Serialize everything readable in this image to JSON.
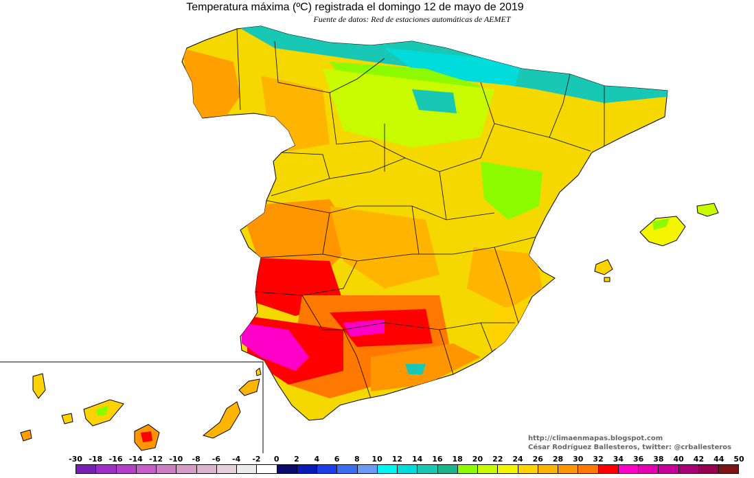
{
  "header": {
    "title": "Temperatura máxima (ºC) registrada el domingo 12 de mayo de 2019",
    "subtitle": "Fuente de datos: Red de estaciones automáticas de AEMET"
  },
  "credit": {
    "blog": "http://climaenmapas.blogspot.com",
    "author": "César Rodríguez Ballesteros, twitter: @crballesteros"
  },
  "legend": {
    "labels": [
      "-30",
      "-18",
      "-16",
      "-14",
      "-12",
      "-10",
      "-8",
      "-6",
      "-4",
      "-2",
      "0",
      "2",
      "4",
      "6",
      "8",
      "10",
      "12",
      "14",
      "16",
      "18",
      "20",
      "22",
      "24",
      "26",
      "28",
      "30",
      "32",
      "34",
      "36",
      "38",
      "40",
      "42",
      "44",
      "50"
    ],
    "colors": [
      "#7a1fb5",
      "#9d2ec8",
      "#b53fcb",
      "#c55ec9",
      "#cc7fc2",
      "#d79bc9",
      "#dbb3cf",
      "#e6cfdc",
      "#ececec",
      "#ffffff",
      "#0b0b6e",
      "#0a1ab4",
      "#1a3fe6",
      "#3a6ef0",
      "#6a9cf5",
      "#00f4f4",
      "#00dcdc",
      "#19c8b4",
      "#19b48c",
      "#8cfa00",
      "#c8fa00",
      "#f5f500",
      "#ffd200",
      "#fab400",
      "#ff9600",
      "#ff7800",
      "#ff0000",
      "#ff00c8",
      "#e600b4",
      "#c8009b",
      "#aa0078",
      "#960050",
      "#7d1414"
    ]
  },
  "map": {
    "regions": [
      "Península",
      "Baleares",
      "Canarias"
    ]
  }
}
